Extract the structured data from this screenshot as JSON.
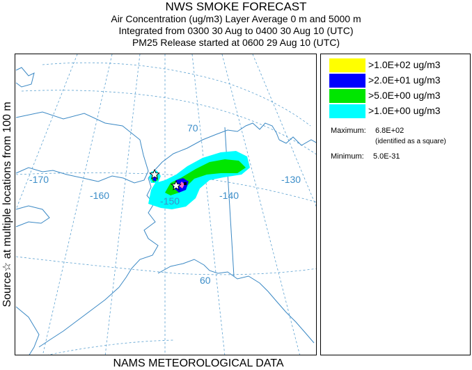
{
  "header": {
    "title": "NWS SMOKE FORECAST",
    "line2": "Air Concentration (ug/m3) Layer Average     0 m and  5000 m",
    "line3": "Integrated from 0300 30 Aug to 0400 30 Aug 10 (UTC)",
    "line4": "PM25 Release started at 0600 29 Aug 10 (UTC)"
  },
  "side_label": "Source☆  at multiple locations  from   100 m",
  "footer": "NAMS METEOROLOGICAL DATA",
  "map": {
    "longitude_labels": [
      "-170",
      "-160",
      "-150",
      "-140",
      "-130"
    ],
    "latitude_labels": [
      "70",
      "60"
    ],
    "colors": {
      "coast": "#3a88c4",
      "graticule": "#5aa0d0"
    }
  },
  "legend": {
    "items": [
      {
        "label": ">1.0E+02 ug/m3",
        "color": "#ffff00"
      },
      {
        "label": ">2.0E+01 ug/m3",
        "color": "#0000ff"
      },
      {
        "label": ">5.0E+00 ug/m3",
        "color": "#00e600"
      },
      {
        "label": ">1.0E+00 ug/m3",
        "color": "#00ffff"
      }
    ],
    "maximum_label": "Maximum:",
    "maximum_value": "6.8E+02",
    "maximum_note": "(identified as a square)",
    "minimum_label": "Minimum:",
    "minimum_value": "5.0E-31"
  }
}
